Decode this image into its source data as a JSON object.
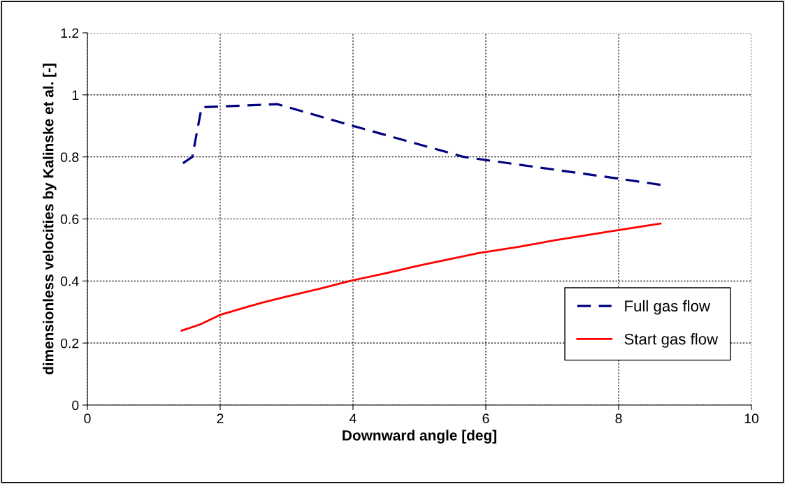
{
  "chart_data": {
    "type": "line",
    "xlabel": "Downward angle [deg]",
    "ylabel": "dimensionless velocities by Kalinske et al. [-]",
    "xlim": [
      0,
      10
    ],
    "xticks": [
      0,
      2,
      4,
      6,
      8,
      10
    ],
    "ylim": [
      0,
      1.2
    ],
    "yticks": [
      0,
      0.2,
      0.4,
      0.6,
      0.8,
      1,
      1.2
    ],
    "grid": true,
    "legend": "bottom right",
    "series": [
      {
        "name": "Full gas flow",
        "color": "#000080",
        "line_style": "dashed",
        "x": [
          1.44,
          1.58,
          1.72,
          2.86,
          4.0,
          5.67,
          6.0,
          8.0,
          8.63
        ],
        "values": [
          0.78,
          0.8,
          0.96,
          0.97,
          0.9,
          0.8,
          0.79,
          0.73,
          0.71
        ]
      },
      {
        "name": "Start gas flow",
        "color": "#ff0000",
        "line_style": "solid",
        "x": [
          1.42,
          1.7,
          1.99,
          2.3,
          2.63,
          3.0,
          3.5,
          3.95,
          4.5,
          5.0,
          5.89,
          6.5,
          7.0,
          7.87,
          8.63
        ],
        "values": [
          0.24,
          0.26,
          0.29,
          0.31,
          0.33,
          0.35,
          0.375,
          0.4,
          0.425,
          0.45,
          0.49,
          0.51,
          0.53,
          0.56,
          0.585
        ]
      }
    ]
  }
}
